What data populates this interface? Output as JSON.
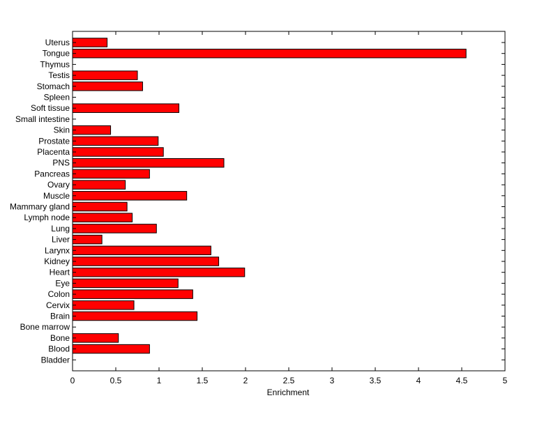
{
  "chart_data": {
    "type": "bar",
    "orientation": "horizontal",
    "categories": [
      "Uterus",
      "Tongue",
      "Thymus",
      "Testis",
      "Stomach",
      "Spleen",
      "Soft tissue",
      "Small intestine",
      "Skin",
      "Prostate",
      "Placenta",
      "PNS",
      "Pancreas",
      "Ovary",
      "Muscle",
      "Mammary gland",
      "Lymph node",
      "Lung",
      "Liver",
      "Larynx",
      "Kidney",
      "Heart",
      "Eye",
      "Colon",
      "Cervix",
      "Brain",
      "Bone marrow",
      "Bone",
      "Blood",
      "Bladder"
    ],
    "values": [
      0.4,
      4.55,
      0,
      0.75,
      0.81,
      0,
      1.23,
      0,
      0.44,
      0.99,
      1.05,
      1.75,
      0.89,
      0.61,
      1.32,
      0.63,
      0.69,
      0.97,
      0.34,
      1.6,
      1.69,
      1.99,
      1.22,
      1.39,
      0.71,
      1.44,
      0,
      0.53,
      0.89,
      0
    ],
    "title": "",
    "xlabel": "Enrichment",
    "ylabel": "",
    "xlim": [
      0,
      5
    ],
    "xticks": [
      0,
      0.5,
      1,
      1.5,
      2,
      2.5,
      3,
      3.5,
      4,
      4.5,
      5
    ],
    "xtick_labels": [
      "0",
      "0.5",
      "1",
      "1.5",
      "2",
      "2.5",
      "3",
      "3.5",
      "4",
      "4.5",
      "5"
    ],
    "grid": false,
    "bar_color": "#ff0000",
    "edge_color": "#000000"
  }
}
